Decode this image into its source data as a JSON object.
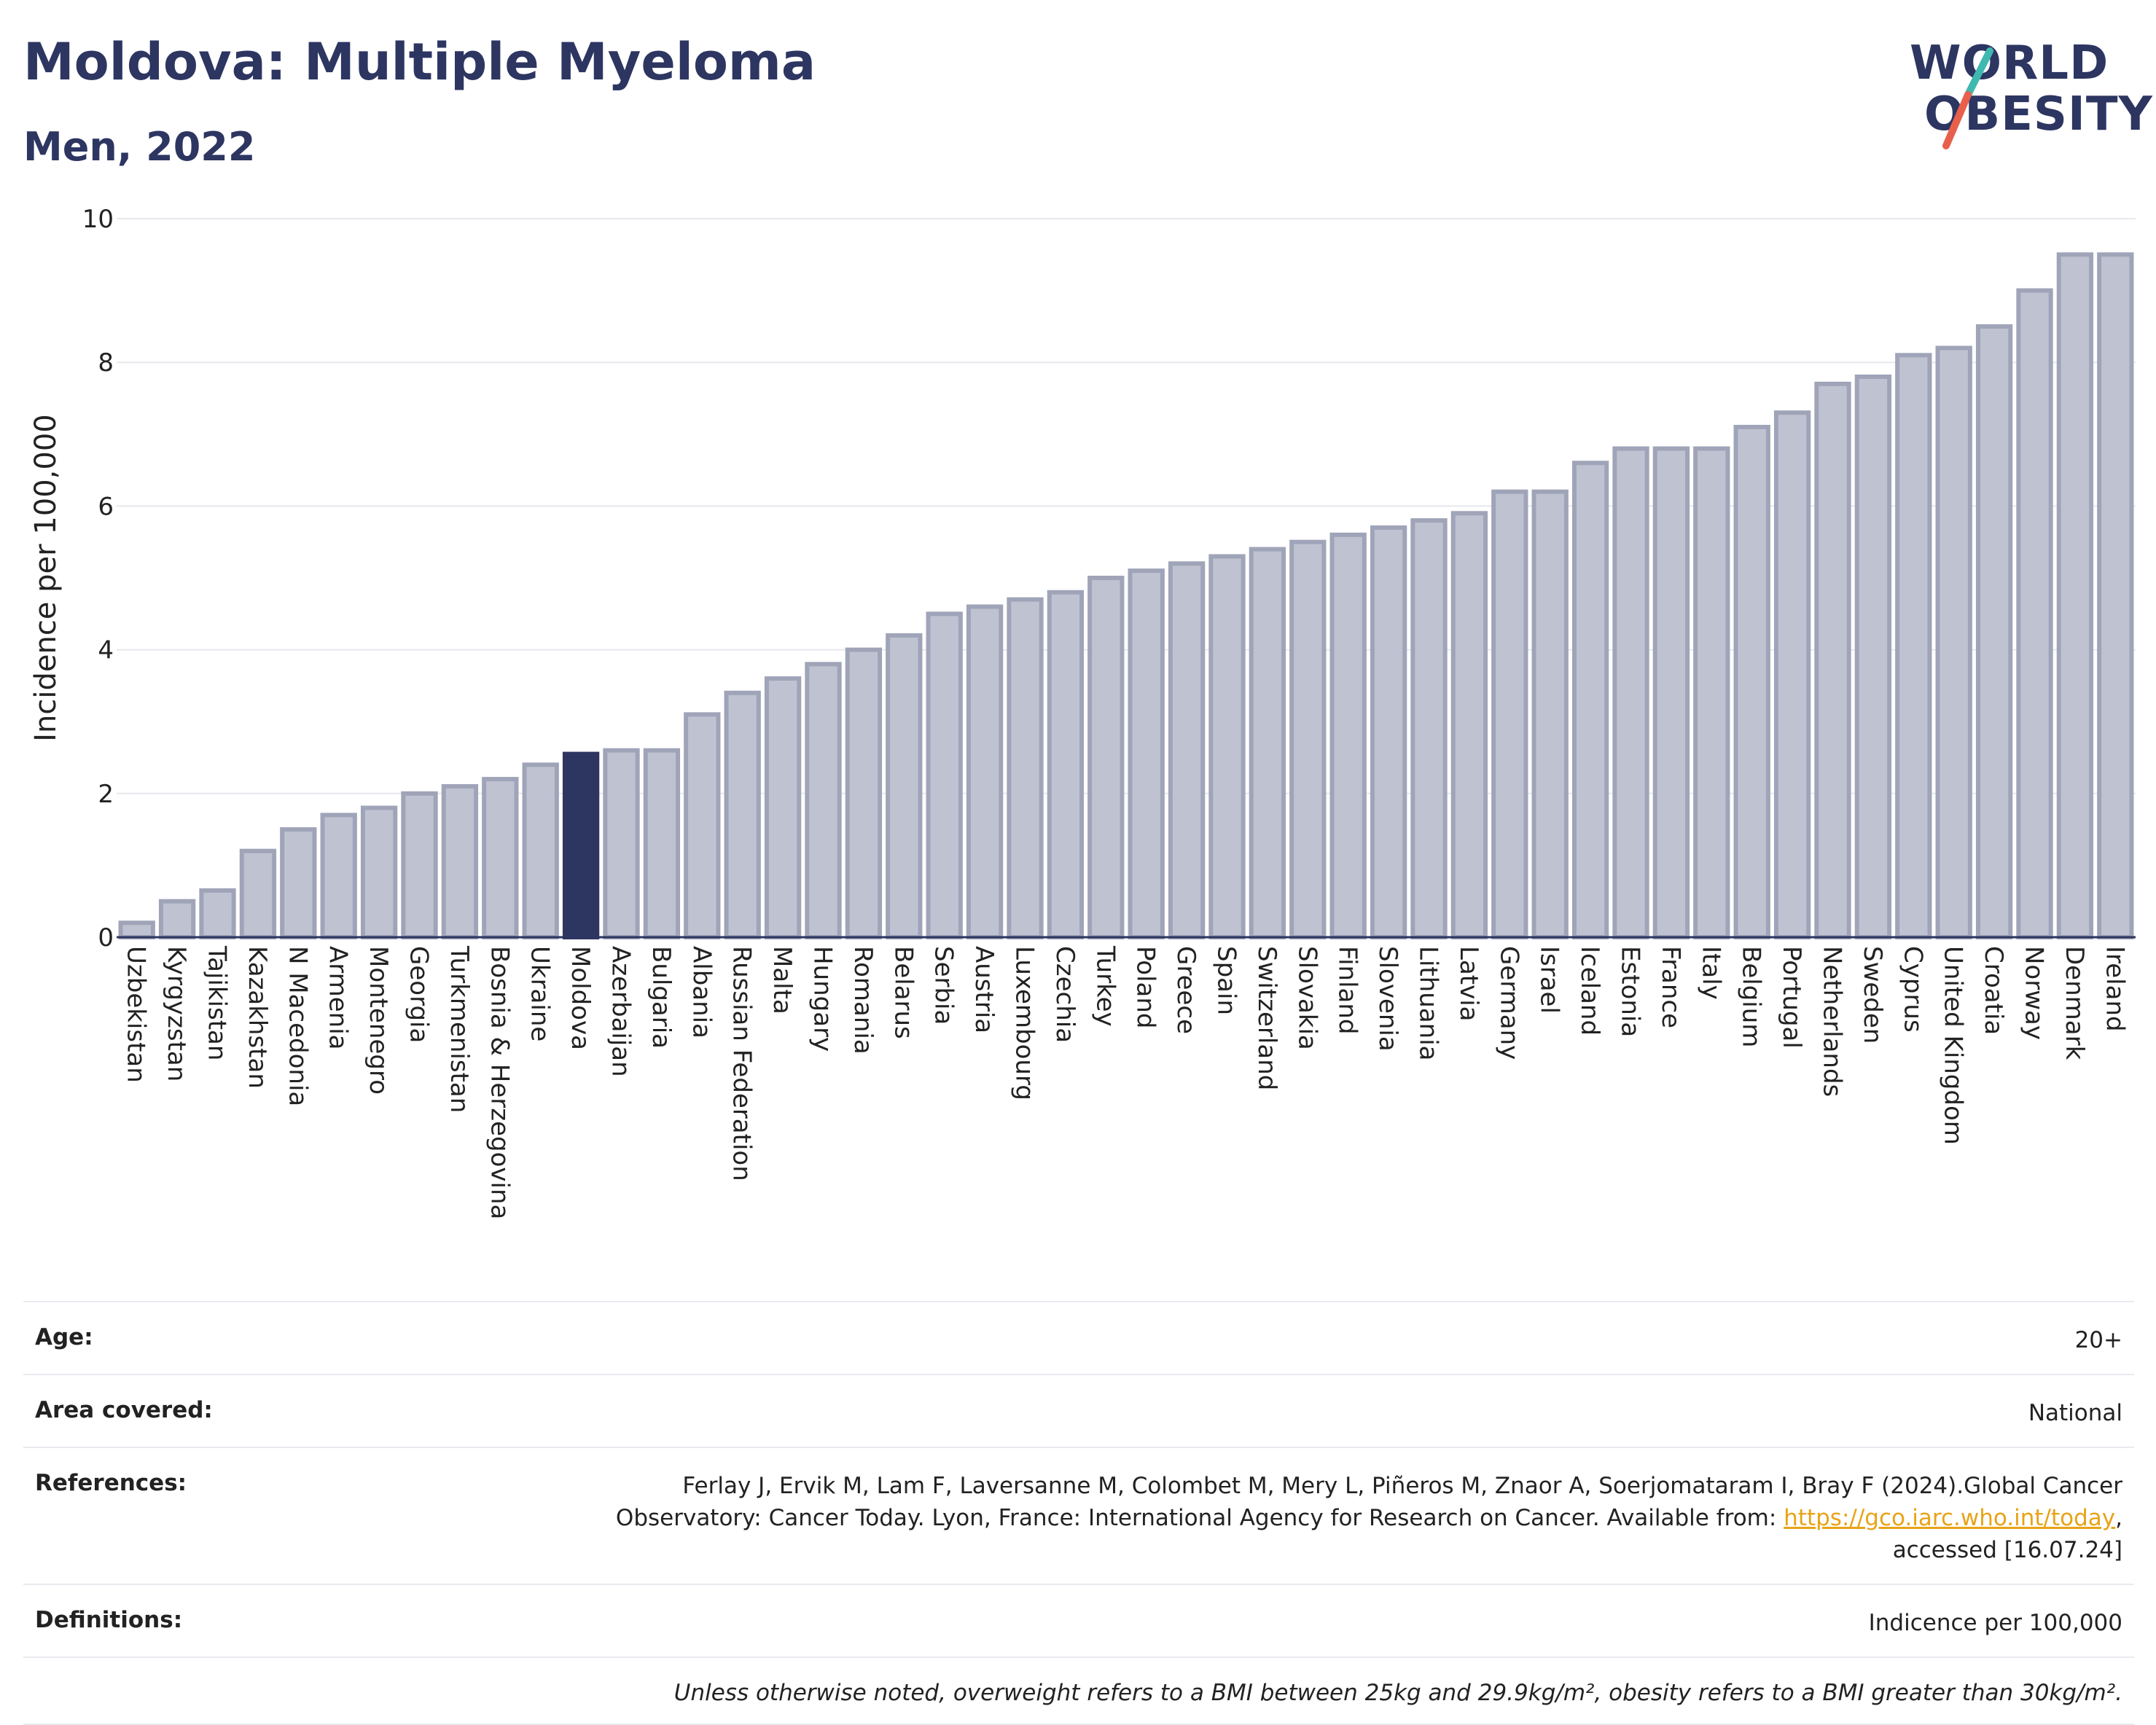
{
  "header": {
    "title": "Moldova: Multiple Myeloma",
    "subtitle": "Men, 2022"
  },
  "logo": {
    "line1": "WORLD",
    "line2": "OBESITY",
    "colors": {
      "text": "#2d3561",
      "slash_teal": "#3fb8b0",
      "slash_red": "#e8604c"
    }
  },
  "colors": {
    "bar_default": "#bfc3d1",
    "bar_default_stroke": "#9fa4b8",
    "bar_highlight": "#2d3561",
    "axis_text": "#222222",
    "grid": "#e6e8ee"
  },
  "chart_data": {
    "type": "bar",
    "title": "Moldova: Multiple Myeloma",
    "subtitle": "Men, 2022",
    "xlabel": "",
    "ylabel": "Incidence per 100,000",
    "ylim": [
      0,
      10
    ],
    "yticks": [
      0,
      2,
      4,
      6,
      8,
      10
    ],
    "grid": true,
    "highlight": "Moldova",
    "categories": [
      "Uzbekistan",
      "Kyrgyzstan",
      "Tajikistan",
      "Kazakhstan",
      "N Macedonia",
      "Armenia",
      "Montenegro",
      "Georgia",
      "Turkmenistan",
      "Bosnia & Herzegovina",
      "Ukraine",
      "Moldova",
      "Azerbaijan",
      "Bulgaria",
      "Albania",
      "Russian Federation",
      "Malta",
      "Hungary",
      "Romania",
      "Belarus",
      "Serbia",
      "Austria",
      "Luxembourg",
      "Czechia",
      "Turkey",
      "Poland",
      "Greece",
      "Spain",
      "Switzerland",
      "Slovakia",
      "Finland",
      "Slovenia",
      "Lithuania",
      "Latvia",
      "Germany",
      "Israel",
      "Iceland",
      "Estonia",
      "France",
      "Italy",
      "Belgium",
      "Portugal",
      "Netherlands",
      "Sweden",
      "Cyprus",
      "United Kingdom",
      "Croatia",
      "Norway",
      "Denmark",
      "Ireland"
    ],
    "values": [
      0.2,
      0.5,
      0.65,
      1.2,
      1.5,
      1.7,
      1.8,
      2.0,
      2.1,
      2.2,
      2.4,
      2.55,
      2.6,
      2.6,
      3.1,
      3.4,
      3.6,
      3.8,
      4.0,
      4.2,
      4.5,
      4.6,
      4.7,
      4.8,
      5.0,
      5.1,
      5.2,
      5.3,
      5.4,
      5.5,
      5.6,
      5.7,
      5.8,
      5.9,
      6.2,
      6.2,
      6.6,
      6.8,
      6.8,
      6.8,
      7.1,
      7.3,
      7.7,
      7.8,
      8.1,
      8.2,
      8.5,
      9.0,
      9.5,
      9.5
    ]
  },
  "info": {
    "age_label": "Age:",
    "age_value": "20+",
    "area_label": "Area covered:",
    "area_value": "National",
    "references_label": "References:",
    "references_text": "Ferlay J, Ervik M, Lam F, Laversanne M, Colombet M, Mery L, Piñeros M, Znaor A, Soerjomataram I, Bray F (2024).Global Cancer Observatory: Cancer Today. Lyon, France: International Agency for Research on Cancer. Available from:",
    "references_link": "https://gco.iarc.who.int/today",
    "references_suffix": ", accessed [16.07.24]",
    "definitions_label": "Definitions:",
    "definitions_value": "Indicence per 100,000",
    "note": "Unless otherwise noted, overweight refers to a BMI between 25kg and 29.9kg/m², obesity refers to a BMI greater than 30kg/m²."
  }
}
